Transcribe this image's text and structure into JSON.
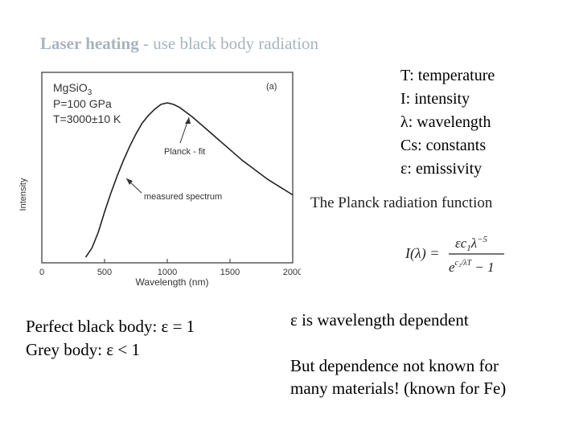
{
  "slide": {
    "title_bold": "Laser heating",
    "title_rest": " - use black body radiation",
    "definitions": [
      "T: temperature",
      "I: intensity",
      "λ: wavelength",
      "Cs: constants",
      "ε: emissivity"
    ],
    "planck_title": "The Planck radiation function",
    "formula": {
      "lhs": "I(λ) =",
      "numerator": "εc",
      "num_sub": "1",
      "num_lambda": "λ",
      "num_exp": "−5",
      "denom_base": "e",
      "denom_exp": "c₂/λT",
      "denom_rest": " − 1"
    },
    "blackbody_lines": [
      "Perfect black body: ε = 1",
      "Grey body:  ε < 1"
    ],
    "eps_dependent": "ε is wavelength dependent",
    "dependence_lines": [
      "But dependence not known for",
      "many materials! (known for Fe)"
    ]
  },
  "chart_data": {
    "type": "line",
    "panel_label": "(a)",
    "sample_lines": [
      "MgSiO",
      "P=100 GPa",
      "T=3000±10 K"
    ],
    "sample_sub": "3",
    "xlabel": "Wavelength (nm)",
    "ylabel": "Intensity",
    "xlim": [
      0,
      2000
    ],
    "xticks": [
      "0",
      "500",
      "1000",
      "1500",
      "2000"
    ],
    "annotations": [
      "Planck - fit",
      "measured spectrum"
    ],
    "series": [
      {
        "x": [
          350,
          400,
          450,
          500,
          550,
          600,
          650,
          700,
          750,
          800,
          850,
          900,
          950,
          1000,
          1050,
          1100,
          1150,
          1200,
          1300,
          1400,
          1500,
          1600,
          1700,
          1800,
          1900,
          2000
        ],
        "y": [
          0.01,
          0.07,
          0.17,
          0.3,
          0.42,
          0.53,
          0.63,
          0.72,
          0.8,
          0.87,
          0.92,
          0.96,
          0.99,
          1.0,
          0.99,
          0.97,
          0.94,
          0.91,
          0.84,
          0.77,
          0.7,
          0.63,
          0.57,
          0.51,
          0.46,
          0.41
        ]
      }
    ]
  }
}
